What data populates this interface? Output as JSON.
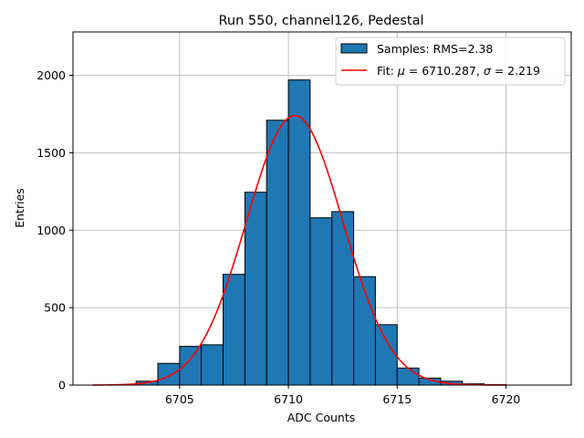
{
  "chart_data": {
    "type": "bar",
    "title": "Run 550, channel126, Pedestal",
    "xlabel": "ADC Counts",
    "ylabel": "Entries",
    "xlim": [
      6700.1,
      6723.0
    ],
    "ylim": [
      0,
      2280
    ],
    "xticks": [
      6705,
      6710,
      6715,
      6720
    ],
    "yticks": [
      0,
      500,
      1000,
      1500,
      2000
    ],
    "grid": true,
    "legend_position": "top-right",
    "bin_width": 1,
    "bins": [
      {
        "left": 6703,
        "count": 25
      },
      {
        "left": 6704,
        "count": 140
      },
      {
        "left": 6705,
        "count": 250
      },
      {
        "left": 6706,
        "count": 260
      },
      {
        "left": 6707,
        "count": 715
      },
      {
        "left": 6708,
        "count": 1245
      },
      {
        "left": 6709,
        "count": 1710
      },
      {
        "left": 6710,
        "count": 1970
      },
      {
        "left": 6711,
        "count": 1080
      },
      {
        "left": 6712,
        "count": 1120
      },
      {
        "left": 6713,
        "count": 700
      },
      {
        "left": 6714,
        "count": 390
      },
      {
        "left": 6715,
        "count": 110
      },
      {
        "left": 6716,
        "count": 45
      },
      {
        "left": 6717,
        "count": 25
      },
      {
        "left": 6718,
        "count": 8
      },
      {
        "left": 6719,
        "count": 3
      }
    ],
    "fit": {
      "mu": 6710.287,
      "sigma": 2.219,
      "amplitude": 1740,
      "x_range": [
        6701,
        6720
      ]
    },
    "legend": {
      "hist_label": "Samples: RMS=2.38",
      "fit_label_prefix": "Fit: ",
      "mu_symbol": "μ",
      "mu_value": " = 6710.287, ",
      "sigma_symbol": "σ",
      "sigma_value": " = 2.219"
    },
    "colors": {
      "bar": "#1f77b4",
      "bar_edge": "#000000",
      "fit": "#ff0000",
      "grid": "#b0b0b0"
    }
  }
}
